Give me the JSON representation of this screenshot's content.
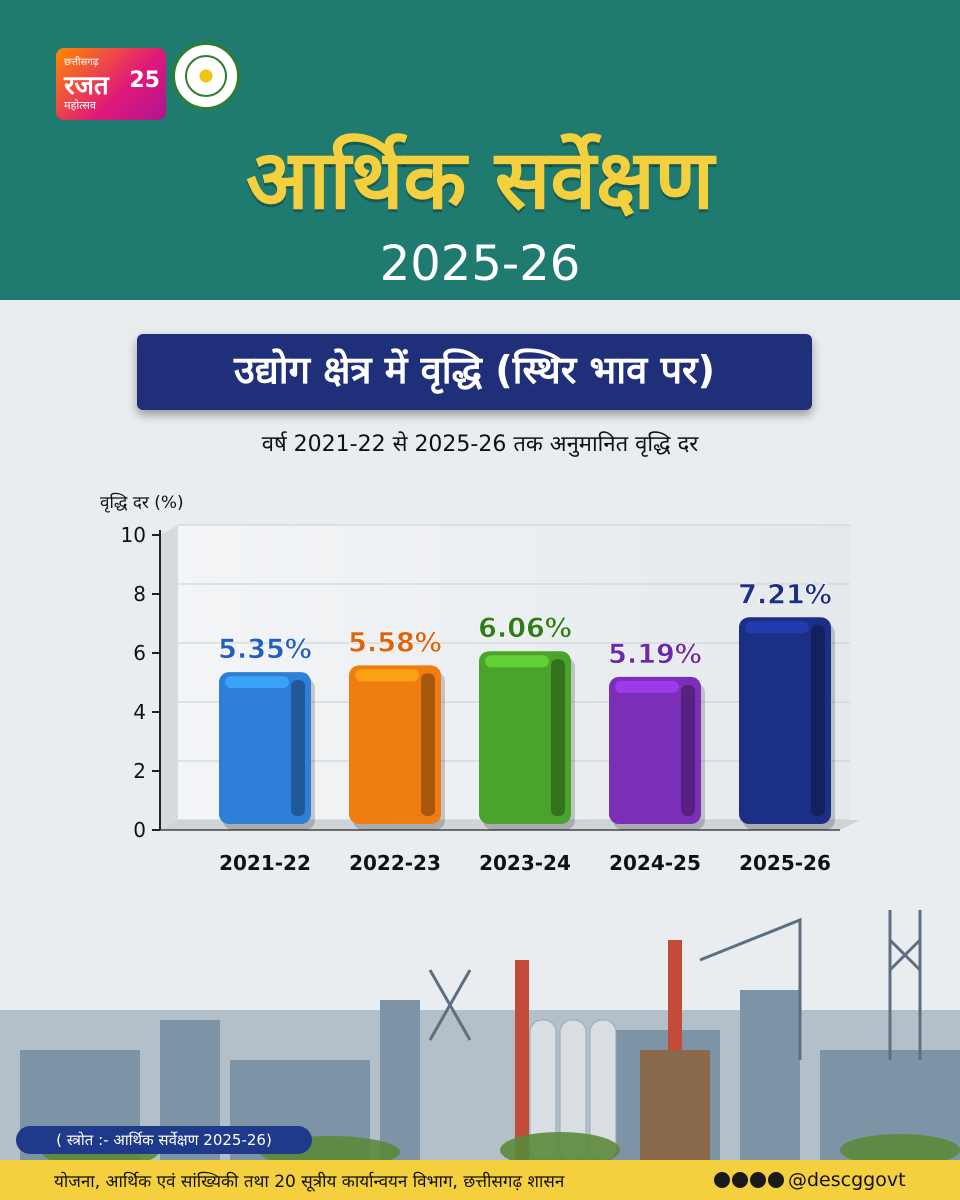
{
  "header": {
    "title": "आर्थिक सर्वेक्षण",
    "year": "2025-26"
  },
  "logos": {
    "rajat_top": "छत्तीसगढ़",
    "rajat_mid": "रजत",
    "rajat_bottom": "महोत्सव",
    "rajat_number": "25",
    "seal_name": "emblem-seal"
  },
  "banner": {
    "title": "उद्योग क्षेत्र में वृद्धि (स्थिर भाव पर)",
    "subtitle": "वर्ष 2021-22 से 2025-26 तक अनुमानित वृद्धि दर"
  },
  "chart_data": {
    "type": "bar",
    "ylabel": "वृद्धि दर (%)",
    "ylim": [
      0,
      10
    ],
    "yticks": [
      0,
      2,
      4,
      6,
      8,
      10
    ],
    "grid": true,
    "categories": [
      "2021-22",
      "2022-23",
      "2023-24",
      "2024-25",
      "2025-26"
    ],
    "values": [
      5.35,
      5.58,
      6.06,
      5.19,
      7.21
    ],
    "data_labels": [
      "5.35%",
      "5.58%",
      "6.06%",
      "5.19%",
      "7.21%"
    ],
    "colors": [
      "#2e7fd8",
      "#ef7d12",
      "#4aa32b",
      "#7b2fb8",
      "#1c2f86"
    ],
    "label_colors": [
      "#1f5fbf",
      "#e0630a",
      "#2f7d16",
      "#6b2ba8",
      "#1c2f86"
    ]
  },
  "source": "( स्त्रोत :- आर्थिक सर्वेक्षण 2025-26)",
  "footer": {
    "text": "योजना, आर्थिक एवं सांख्यिकी तथा 20 सूत्रीय कार्यान्वयन विभाग, छत्तीसगढ़ शासन",
    "social_icons": [
      "facebook-icon",
      "instagram-icon",
      "x-icon",
      "youtube-icon"
    ],
    "handle": "@descggovt"
  }
}
